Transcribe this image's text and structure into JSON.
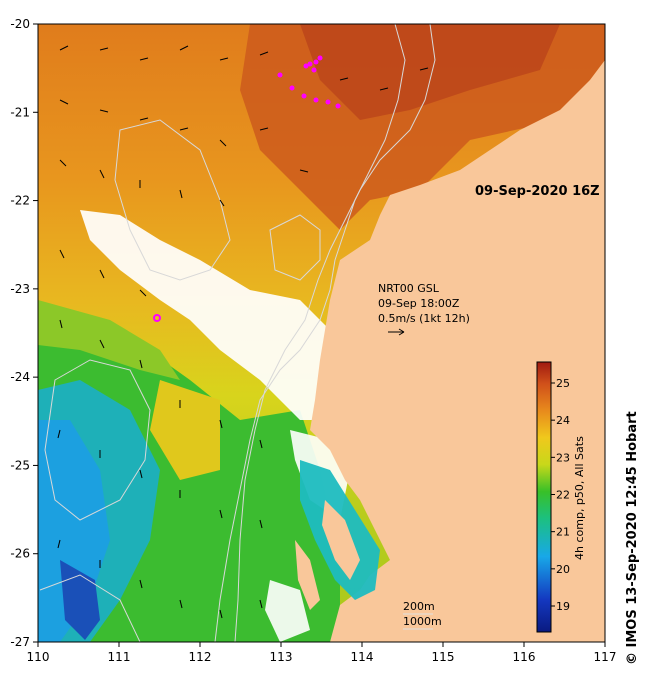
{
  "map": {
    "date_label": "09-Sep-2020 16Z",
    "current_product": "NRT00 GSL",
    "current_time": "09-Sep 18:00Z",
    "current_scale": "0.5m/s (1kt 12h)",
    "isobath_shallow": "200m",
    "isobath_deep": "1000m",
    "colorbar_label": "4h comp, p50, All Sats",
    "colorbar_ticks": [
      "19",
      "20",
      "21",
      "22",
      "23",
      "24",
      "25"
    ],
    "credit": "© IMOS 13-Sep-2020 12:45 Hobart",
    "x_ticks": [
      "110",
      "111",
      "112",
      "113",
      "114",
      "115",
      "116",
      "117"
    ],
    "y_ticks": [
      "-20",
      "-21",
      "-22",
      "-23",
      "-24",
      "-25",
      "-26",
      "-27"
    ],
    "colors": {
      "land": "#f9c79a",
      "cloud": "#ffffff",
      "sst_warm": "#c8401c",
      "sst_orange": "#e8801e",
      "sst_yellow": "#e6d81a",
      "sst_green": "#2fb83a",
      "sst_cyan": "#1aa8e0",
      "sst_blue": "#1a3aa0",
      "marker": "#ff00ff"
    }
  }
}
